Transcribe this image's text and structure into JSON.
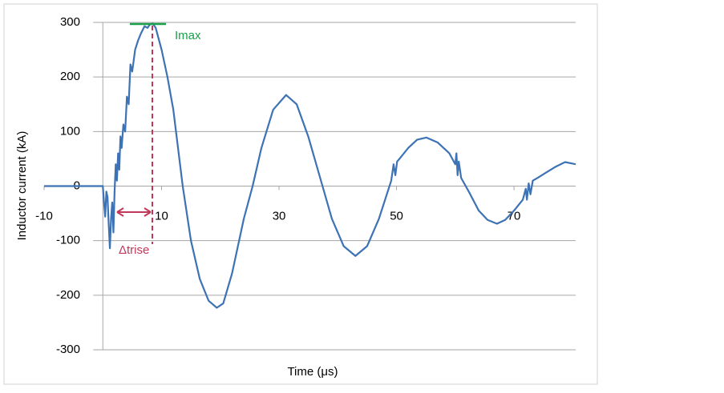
{
  "chart_data": {
    "type": "line",
    "x_label": "Time (μs)",
    "y_label": "Inductor current (kA)",
    "annotations": [
      "Imax",
      "Δtrise"
    ],
    "x": [
      -10,
      -1,
      0,
      0.2,
      0.4,
      0.6,
      0.8,
      1.0,
      1.2,
      1.4,
      1.6,
      1.8,
      2.0,
      2.2,
      2.4,
      2.6,
      2.8,
      3.0,
      3.2,
      3.5,
      3.8,
      4.1,
      4.4,
      4.7,
      5.0,
      5.5,
      6.0,
      6.5,
      7.1,
      7.6,
      8.0,
      8.5,
      9.0,
      10,
      11,
      12,
      13.6,
      15,
      16.5,
      18,
      19.4,
      20.5,
      22,
      24,
      25.5,
      27,
      29,
      31.2,
      33,
      35,
      37.4,
      39,
      41,
      43,
      45,
      47,
      48.5,
      49.1,
      49.5,
      49.8,
      50.1,
      50.5,
      52,
      53.5,
      55.1,
      57,
      59,
      60,
      60.2,
      60.4,
      60.6,
      61,
      62.3,
      64,
      65.5,
      67.1,
      68.5,
      70,
      71.5,
      72,
      72.2,
      72.5,
      72.8,
      73.2,
      74,
      75.5,
      77,
      78.7,
      80.5
    ],
    "values": [
      0,
      0,
      0,
      -30,
      -56,
      -10,
      -20,
      -70,
      -114,
      -60,
      -30,
      -85,
      -10,
      40,
      10,
      60,
      30,
      91,
      70,
      113,
      100,
      164,
      150,
      223,
      210,
      250,
      267,
      280,
      293,
      290,
      296,
      298,
      290,
      250,
      200,
      140,
      0,
      -100,
      -170,
      -210,
      -223,
      -215,
      -160,
      -60,
      0,
      70,
      140,
      167,
      150,
      90,
      0,
      -60,
      -110,
      -128,
      -110,
      -60,
      -10,
      10,
      40,
      20,
      45,
      50,
      70,
      85,
      89,
      80,
      60,
      40,
      60,
      20,
      45,
      15,
      -10,
      -45,
      -62,
      -69,
      -62,
      -45,
      -25,
      -5,
      -25,
      5,
      -15,
      10,
      15,
      25,
      35,
      44,
      40
    ],
    "color": "#3d72b4",
    "xlim": [
      -10,
      80.5
    ],
    "xticks": [
      -10,
      10,
      30,
      50,
      70
    ],
    "ylim": [
      -300,
      300
    ],
    "yticks": [
      -300,
      -200,
      -100,
      0,
      100,
      200,
      300
    ],
    "grid": true
  }
}
